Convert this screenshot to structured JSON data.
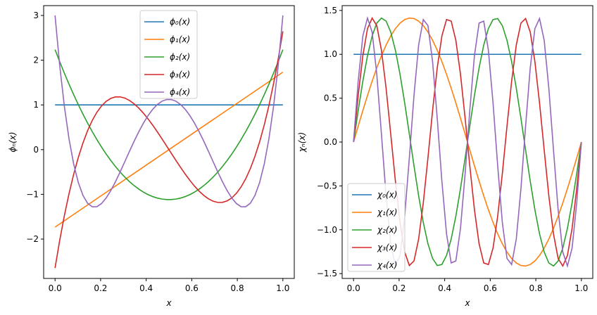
{
  "colors": {
    "series": [
      "#1f77b4",
      "#ff7f0e",
      "#2ca02c",
      "#d62728",
      "#9467bd"
    ]
  },
  "chart_data": [
    {
      "type": "line",
      "title": "",
      "xlabel": "x",
      "ylabel": "ϕₙ(x)",
      "xlim": [
        -0.05,
        1.05
      ],
      "ylim": [
        -2.88,
        3.22
      ],
      "xticks": [
        0.0,
        0.2,
        0.4,
        0.6,
        0.8,
        1.0
      ],
      "xtick_labels": [
        "0.0",
        "0.2",
        "0.4",
        "0.6",
        "0.8",
        "1.0"
      ],
      "yticks": [
        -2,
        -1,
        0,
        1,
        2,
        3
      ],
      "ytick_labels": [
        "−2",
        "−1",
        "0",
        "1",
        "2",
        "3"
      ],
      "grid": false,
      "legend_position": "top-center",
      "series": [
        {
          "name": "ϕ₀(x)",
          "function": "legendre",
          "n": 0
        },
        {
          "name": "ϕ₁(x)",
          "function": "legendre",
          "n": 1
        },
        {
          "name": "ϕ₂(x)",
          "function": "legendre",
          "n": 2
        },
        {
          "name": "ϕ₃(x)",
          "function": "legendre",
          "n": 3
        },
        {
          "name": "ϕ₄(x)",
          "function": "legendre",
          "n": 4
        }
      ]
    },
    {
      "type": "line",
      "title": "",
      "xlabel": "x",
      "ylabel": "χₙ(x)",
      "xlim": [
        -0.05,
        1.05
      ],
      "ylim": [
        -1.555,
        1.555
      ],
      "xticks": [
        0.0,
        0.2,
        0.4,
        0.6,
        0.8,
        1.0
      ],
      "xtick_labels": [
        "0.0",
        "0.2",
        "0.4",
        "0.6",
        "0.8",
        "1.0"
      ],
      "yticks": [
        -1.5,
        -1.0,
        -0.5,
        0.0,
        0.5,
        1.0,
        1.5
      ],
      "ytick_labels": [
        "−1.5",
        "−1.0",
        "−0.5",
        "0.0",
        "0.5",
        "1.0",
        "1.5"
      ],
      "grid": false,
      "legend_position": "bottom-left",
      "series": [
        {
          "name": "χ₀(x)",
          "function": "sine",
          "n": 0
        },
        {
          "name": "χ₁(x)",
          "function": "sine",
          "n": 1
        },
        {
          "name": "χ₂(x)",
          "function": "sine",
          "n": 2
        },
        {
          "name": "χ₃(x)",
          "function": "sine",
          "n": 3
        },
        {
          "name": "χ₄(x)",
          "function": "sine",
          "n": 4
        }
      ]
    }
  ]
}
